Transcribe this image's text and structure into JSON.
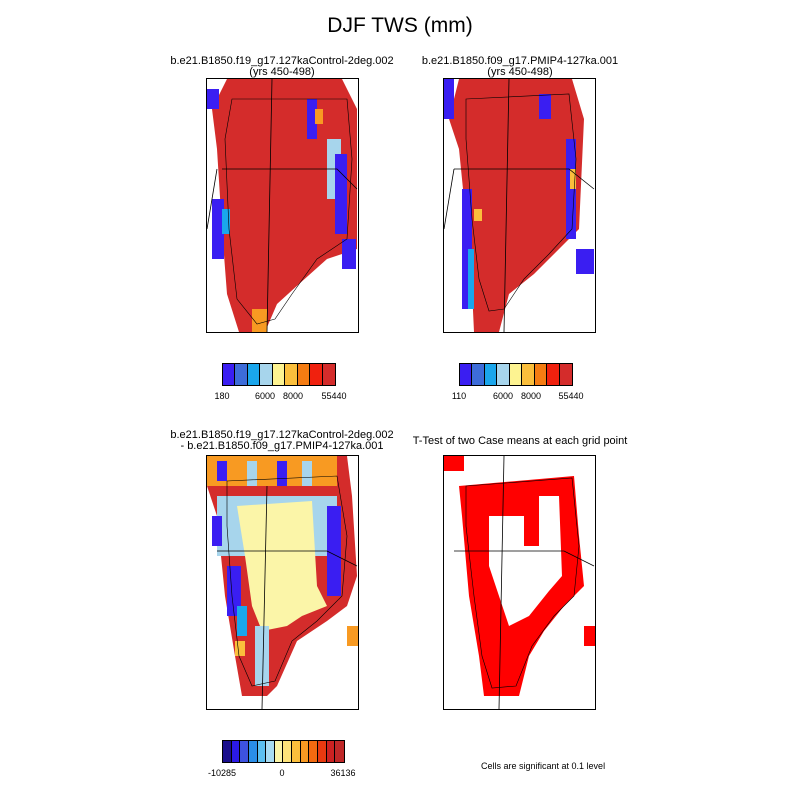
{
  "title": "DJF TWS (mm)",
  "panels": [
    {
      "title_line1": "b.e21.B1850.f19_g17.127kaControl-2deg.002",
      "title_line2": "(yrs 450-498)",
      "colorbar": {
        "colors": [
          "#3a1ef2",
          "#3d6cd9",
          "#1aa6ec",
          "#a7d5ec",
          "#fdf391",
          "#fbbf3c",
          "#f57c12",
          "#f0210e",
          "#d42c2b"
        ],
        "tick_labels": [
          "180",
          "6000",
          "8000",
          "55440"
        ]
      }
    },
    {
      "title_line1": "b.e21.B1850.f09_g17.PMIP4-127ka.001",
      "title_line2": "(yrs 450-498)",
      "colorbar": {
        "colors": [
          "#3a1ef2",
          "#3d6cd9",
          "#1aa6ec",
          "#a7d5ec",
          "#fdf391",
          "#fbbf3c",
          "#f57c12",
          "#f0210e",
          "#d42c2b"
        ],
        "tick_labels": [
          "110",
          "6000",
          "8000",
          "55440"
        ]
      }
    },
    {
      "title_line1": "b.e21.B1850.f19_g17.127kaControl-2deg.002",
      "title_line2": "- b.e21.B1850.f09_g17.PMIP4-127ka.001",
      "colorbar": {
        "colors": [
          "#1a0f8c",
          "#2b1ae6",
          "#3d52e0",
          "#2a8ee8",
          "#5cc0f0",
          "#a8dcf2",
          "#fbf5a8",
          "#fde37a",
          "#fbbf3c",
          "#f89a22",
          "#f26a10",
          "#e83a10",
          "#cc2222",
          "#c02828"
        ],
        "tick_labels": [
          "-10285",
          "0",
          "36136"
        ]
      }
    },
    {
      "title_line1": "T-Test of two Case means at each grid point",
      "note": "Cells are significant at 0.1 level"
    }
  ],
  "map_colors": {
    "ice_red": "#d42c2b",
    "sig_red": "#ff0000",
    "low_yellow": "#fbf5a8",
    "edge_blue": "#3a1ef2",
    "light_blue": "#a7d5ec",
    "orange": "#f89a22"
  }
}
